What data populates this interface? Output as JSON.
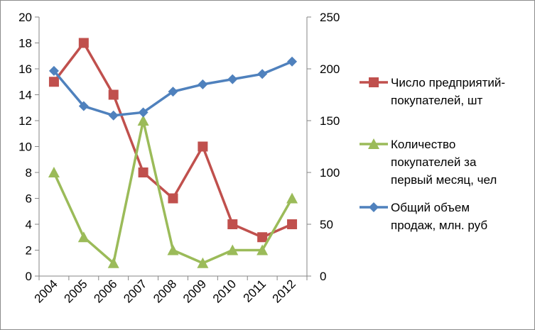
{
  "chart_data": {
    "type": "line",
    "title": "",
    "categories": [
      "2004",
      "2005",
      "2006",
      "2007",
      "2008",
      "2009",
      "2010",
      "2011",
      "2012"
    ],
    "y_left": {
      "ylim": [
        0,
        20
      ],
      "ticks": [
        "0",
        "2",
        "4",
        "6",
        "8",
        "10",
        "12",
        "14",
        "16",
        "18",
        "20"
      ]
    },
    "y_right": {
      "ylim": [
        0,
        250
      ],
      "ticks": [
        "0",
        "50",
        "100",
        "150",
        "200",
        "250"
      ]
    },
    "grid": false,
    "legend_position": "right",
    "series": [
      {
        "name": "Число предприятий-покупателей, шт",
        "legend_lines": [
          "Число предприятий-",
          "покупателей, шт"
        ],
        "axis": "left",
        "marker": "square",
        "color": "#c0504d",
        "values": [
          15,
          18,
          14,
          8,
          6,
          10,
          4,
          3,
          4
        ]
      },
      {
        "name": "Количество покупателей за первый месяц, чел",
        "legend_lines": [
          "Количество",
          "покупателей за",
          "первый месяц, чел"
        ],
        "axis": "left",
        "marker": "triangle",
        "color": "#9bbb59",
        "values": [
          8,
          3,
          1,
          12,
          2,
          1,
          2,
          2,
          6
        ]
      },
      {
        "name": "Общий объем продаж, млн. руб",
        "legend_lines": [
          "Общий объем",
          "продаж, млн. руб"
        ],
        "axis": "right",
        "marker": "diamond",
        "color": "#4f81bd",
        "values": [
          198,
          164,
          155,
          158,
          178,
          185,
          190,
          195,
          207
        ]
      }
    ]
  }
}
